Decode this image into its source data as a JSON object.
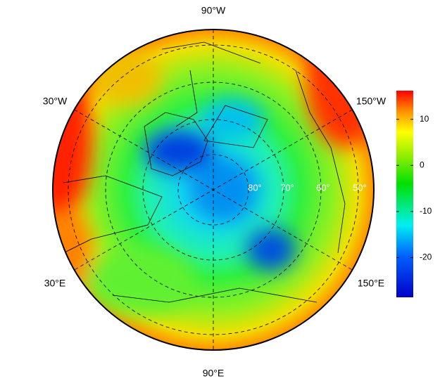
{
  "map": {
    "lon_labels": [
      "90°W",
      "30°W",
      "150°W",
      "30°E",
      "150°E",
      "90°E"
    ],
    "lat_labels": [
      "80°",
      "70°",
      "60°",
      "50°"
    ],
    "colorbar": {
      "lim": [
        -28.6,
        16.2
      ],
      "ticks": [
        10,
        0,
        -10,
        -20
      ]
    }
  }
}
